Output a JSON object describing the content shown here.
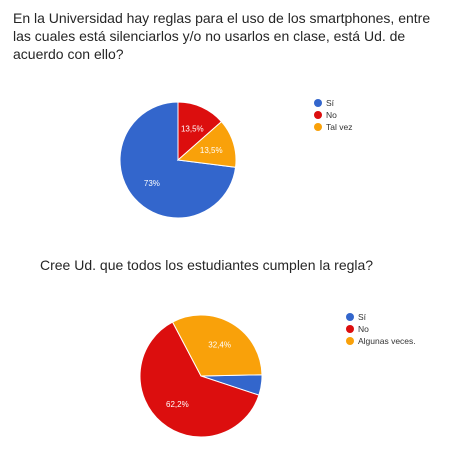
{
  "questions": {
    "q1": "En la Universidad hay reglas para el uso de los smartphones, entre las cuales está silenciarlos y/o no usarlos en clase, está Ud. de acuerdo con ello?",
    "q2": "Cree Ud. que todos los estudiantes cumplen la regla?"
  },
  "colors": {
    "blue": "#3366cc",
    "red": "#dc0e0e",
    "orange": "#f9a10a"
  },
  "chart_data": [
    {
      "type": "pie",
      "title": "En la Universidad hay reglas para el uso de los smartphones, entre las cuales está silenciarlos y/o no usarlos en clase, está Ud. de acuerdo con ello?",
      "slices": [
        {
          "label": "Sí",
          "value": 73,
          "display": "73%",
          "color": "#3366cc"
        },
        {
          "label": "No",
          "value": 13.5,
          "display": "13,5%",
          "color": "#dc0e0e"
        },
        {
          "label": "Tal vez",
          "value": 13.5,
          "display": "13,5%",
          "color": "#f9a10a"
        }
      ],
      "legend": "right"
    },
    {
      "type": "pie",
      "title": "Cree Ud. que todos los estudiantes cumplen la regla?",
      "slices": [
        {
          "label": "Sí",
          "value": 5.4,
          "display": "",
          "color": "#3366cc"
        },
        {
          "label": "No",
          "value": 62.2,
          "display": "62,2%",
          "color": "#dc0e0e"
        },
        {
          "label": "Algunas veces.",
          "value": 32.4,
          "display": "32,4%",
          "color": "#f9a10a"
        }
      ],
      "legend": "right"
    }
  ]
}
